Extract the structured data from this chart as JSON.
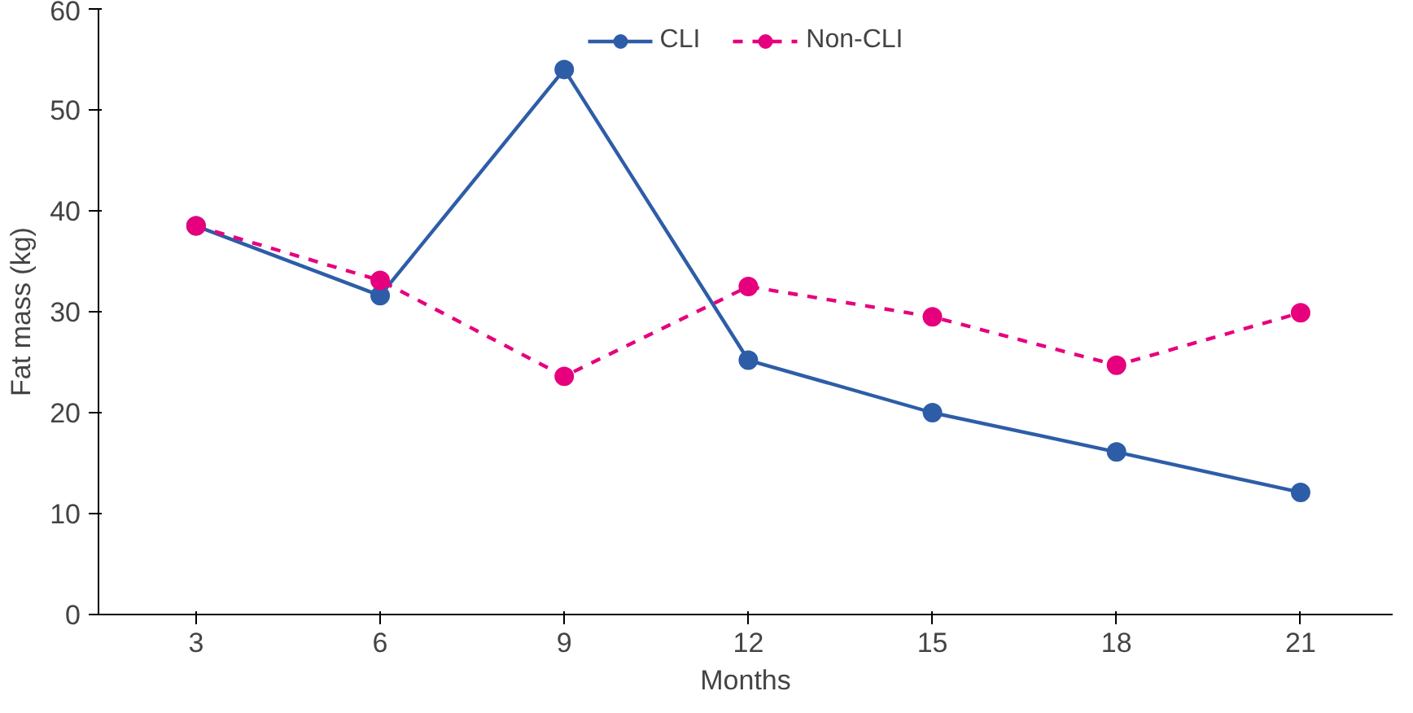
{
  "chart_data": {
    "type": "line",
    "xlabel": "Months",
    "ylabel": "Fat mass (kg)",
    "categories": [
      "3",
      "6",
      "9",
      "12",
      "15",
      "18",
      "21"
    ],
    "series": [
      {
        "name": "CLI",
        "color": "#2e5da8",
        "values": [
          38.5,
          31.6,
          54.0,
          25.2,
          20.0,
          16.1,
          12.1
        ],
        "line_style": "solid"
      },
      {
        "name": "Non-CLI",
        "color": "#e6007e",
        "values": [
          38.5,
          33.1,
          23.6,
          32.5,
          29.5,
          24.7,
          29.9
        ],
        "line_style": "dashed"
      }
    ],
    "ylim": [
      0,
      60
    ],
    "yticks": [
      0,
      10,
      20,
      30,
      40,
      50,
      60
    ],
    "grid": false,
    "legend": "top",
    "marker": "circle"
  }
}
